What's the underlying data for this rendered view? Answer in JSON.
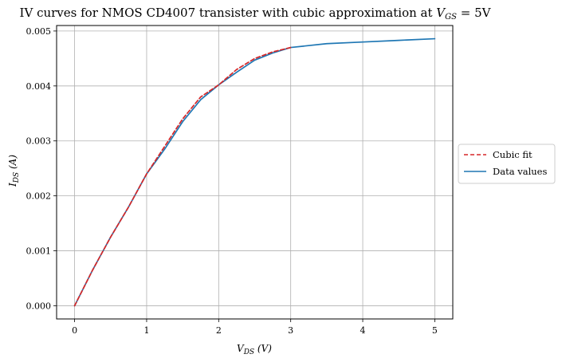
{
  "chart_data": {
    "type": "line",
    "title": "IV curves for NMOS CD4007 transister with cubic approximation at V_GS = 5V",
    "title_parts": {
      "prefix": "IV curves for NMOS CD4007 transister with cubic approximation at ",
      "var": "V",
      "sub": "GS",
      "suffix": " = 5V"
    },
    "xlabel": {
      "var": "V",
      "sub": "DS",
      "rest": " (V)"
    },
    "ylabel": {
      "var": "I",
      "sub": "DS",
      "rest": " (A)"
    },
    "xlim": [
      -0.25,
      5.25
    ],
    "ylim": [
      -0.00024,
      0.0051
    ],
    "xticks": [
      0,
      1,
      2,
      3,
      4,
      5
    ],
    "xtick_labels": [
      "0",
      "1",
      "2",
      "3",
      "4",
      "5"
    ],
    "yticks": [
      0,
      0.001,
      0.002,
      0.003,
      0.004,
      0.005
    ],
    "ytick_labels": [
      "0.000",
      "0.001",
      "0.002",
      "0.003",
      "0.004",
      "0.005"
    ],
    "grid": true,
    "legend_position": "outside-right",
    "series": [
      {
        "name": "Cubic fit",
        "style": "dashed",
        "color": "#d62728",
        "x": [
          0,
          0.25,
          0.5,
          0.75,
          1.0,
          1.25,
          1.5,
          1.75,
          2.0,
          2.25,
          2.5,
          2.75,
          3.0
        ],
        "y": [
          0.0,
          0.00065,
          0.00125,
          0.0018,
          0.0024,
          0.0029,
          0.0034,
          0.0038,
          0.00402,
          0.0043,
          0.0045,
          0.00462,
          0.0047
        ]
      },
      {
        "name": "Data values",
        "style": "solid",
        "color": "#1f77b4",
        "x": [
          0,
          0.25,
          0.5,
          0.75,
          1.0,
          1.25,
          1.5,
          1.75,
          2.0,
          2.25,
          2.5,
          2.75,
          3.0,
          3.5,
          4.0,
          4.5,
          5.0
        ],
        "y": [
          0.0,
          0.00065,
          0.00125,
          0.0018,
          0.0024,
          0.00285,
          0.00335,
          0.00375,
          0.00402,
          0.00425,
          0.00447,
          0.0046,
          0.0047,
          0.00477,
          0.0048,
          0.00483,
          0.00486
        ]
      }
    ]
  }
}
